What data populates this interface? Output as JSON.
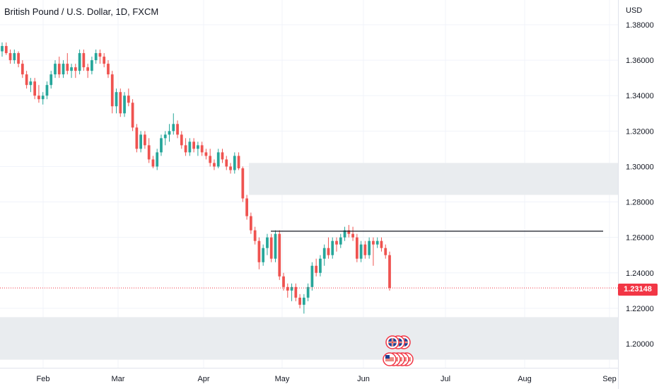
{
  "header": {
    "title": "British Pound / U.S. Dollar, 1D, FXCM",
    "currency": "USD"
  },
  "last_price": "1.23148",
  "chart_data": {
    "type": "candlestick",
    "symbol": "British Pound / U.S. Dollar",
    "interval": "1D",
    "source": "FXCM",
    "ylim": [
      1.19,
      1.39
    ],
    "y_ticks": [
      1.38,
      1.36,
      1.34,
      1.32,
      1.3,
      1.28,
      1.26,
      1.24,
      1.22,
      1.2
    ],
    "x_ticks": [
      "Feb",
      "Mar",
      "Apr",
      "May",
      "Jun",
      "Jul",
      "Aug",
      "Sep"
    ],
    "grid": true,
    "colors": {
      "up": "#26a69a",
      "down": "#ef5350",
      "zone": "#e9ecef",
      "line": "#131722",
      "last_price": "#f23645"
    },
    "resistance_line": 1.2635,
    "zones": [
      {
        "top": 1.302,
        "bottom": 1.284
      },
      {
        "top": 1.215,
        "bottom": 1.191
      }
    ],
    "candles": [
      [
        1.365,
        1.37,
        1.362,
        1.368
      ],
      [
        1.368,
        1.37,
        1.363,
        1.364
      ],
      [
        1.364,
        1.366,
        1.358,
        1.36
      ],
      [
        1.36,
        1.366,
        1.358,
        1.364
      ],
      [
        1.364,
        1.365,
        1.356,
        1.358
      ],
      [
        1.358,
        1.36,
        1.35,
        1.352
      ],
      [
        1.352,
        1.354,
        1.344,
        1.346
      ],
      [
        1.346,
        1.35,
        1.342,
        1.348
      ],
      [
        1.348,
        1.35,
        1.338,
        1.34
      ],
      [
        1.34,
        1.346,
        1.336,
        1.338
      ],
      [
        1.338,
        1.342,
        1.335,
        1.34
      ],
      [
        1.34,
        1.348,
        1.338,
        1.346
      ],
      [
        1.346,
        1.354,
        1.344,
        1.352
      ],
      [
        1.352,
        1.36,
        1.35,
        1.358
      ],
      [
        1.358,
        1.362,
        1.35,
        1.352
      ],
      [
        1.352,
        1.36,
        1.35,
        1.358
      ],
      [
        1.358,
        1.364,
        1.352,
        1.354
      ],
      [
        1.354,
        1.358,
        1.35,
        1.356
      ],
      [
        1.356,
        1.358,
        1.35,
        1.354
      ],
      [
        1.354,
        1.366,
        1.352,
        1.364
      ],
      [
        1.364,
        1.366,
        1.354,
        1.356
      ],
      [
        1.356,
        1.358,
        1.35,
        1.354
      ],
      [
        1.354,
        1.362,
        1.352,
        1.36
      ],
      [
        1.36,
        1.366,
        1.358,
        1.364
      ],
      [
        1.364,
        1.366,
        1.358,
        1.362
      ],
      [
        1.362,
        1.364,
        1.356,
        1.358
      ],
      [
        1.358,
        1.36,
        1.35,
        1.352
      ],
      [
        1.352,
        1.354,
        1.33,
        1.334
      ],
      [
        1.334,
        1.344,
        1.33,
        1.342
      ],
      [
        1.342,
        1.344,
        1.328,
        1.33
      ],
      [
        1.33,
        1.342,
        1.328,
        1.34
      ],
      [
        1.34,
        1.344,
        1.334,
        1.336
      ],
      [
        1.336,
        1.338,
        1.32,
        1.322
      ],
      [
        1.322,
        1.324,
        1.308,
        1.31
      ],
      [
        1.31,
        1.32,
        1.308,
        1.318
      ],
      [
        1.318,
        1.32,
        1.31,
        1.312
      ],
      [
        1.312,
        1.316,
        1.302,
        1.304
      ],
      [
        1.304,
        1.306,
        1.299,
        1.3
      ],
      [
        1.3,
        1.31,
        1.298,
        1.308
      ],
      [
        1.308,
        1.318,
        1.306,
        1.316
      ],
      [
        1.316,
        1.32,
        1.312,
        1.318
      ],
      [
        1.318,
        1.324,
        1.314,
        1.32
      ],
      [
        1.32,
        1.33,
        1.318,
        1.324
      ],
      [
        1.324,
        1.326,
        1.316,
        1.318
      ],
      [
        1.318,
        1.32,
        1.31,
        1.312
      ],
      [
        1.312,
        1.316,
        1.306,
        1.308
      ],
      [
        1.308,
        1.316,
        1.306,
        1.314
      ],
      [
        1.314,
        1.316,
        1.308,
        1.31
      ],
      [
        1.31,
        1.314,
        1.306,
        1.312
      ],
      [
        1.312,
        1.314,
        1.306,
        1.308
      ],
      [
        1.308,
        1.31,
        1.304,
        1.306
      ],
      [
        1.306,
        1.31,
        1.3,
        1.302
      ],
      [
        1.302,
        1.304,
        1.298,
        1.3
      ],
      [
        1.3,
        1.31,
        1.299,
        1.308
      ],
      [
        1.308,
        1.31,
        1.302,
        1.304
      ],
      [
        1.304,
        1.306,
        1.298,
        1.3
      ],
      [
        1.3,
        1.302,
        1.296,
        1.298
      ],
      [
        1.298,
        1.308,
        1.296,
        1.306
      ],
      [
        1.306,
        1.308,
        1.298,
        1.299
      ],
      [
        1.299,
        1.3,
        1.28,
        1.282
      ],
      [
        1.282,
        1.284,
        1.27,
        1.272
      ],
      [
        1.272,
        1.274,
        1.262,
        1.264
      ],
      [
        1.264,
        1.266,
        1.256,
        1.258
      ],
      [
        1.258,
        1.26,
        1.242,
        1.246
      ],
      [
        1.246,
        1.256,
        1.244,
        1.254
      ],
      [
        1.254,
        1.262,
        1.25,
        1.26
      ],
      [
        1.26,
        1.262,
        1.246,
        1.248
      ],
      [
        1.248,
        1.264,
        1.246,
        1.262
      ],
      [
        1.262,
        1.264,
        1.236,
        1.238
      ],
      [
        1.238,
        1.24,
        1.23,
        1.232
      ],
      [
        1.232,
        1.234,
        1.226,
        1.23
      ],
      [
        1.23,
        1.234,
        1.224,
        1.232
      ],
      [
        1.232,
        1.234,
        1.224,
        1.226
      ],
      [
        1.226,
        1.228,
        1.22,
        1.222
      ],
      [
        1.222,
        1.228,
        1.217,
        1.226
      ],
      [
        1.226,
        1.234,
        1.224,
        1.232
      ],
      [
        1.232,
        1.246,
        1.23,
        1.244
      ],
      [
        1.244,
        1.248,
        1.238,
        1.24
      ],
      [
        1.24,
        1.25,
        1.238,
        1.248
      ],
      [
        1.248,
        1.256,
        1.244,
        1.254
      ],
      [
        1.254,
        1.26,
        1.248,
        1.25
      ],
      [
        1.25,
        1.26,
        1.248,
        1.258
      ],
      [
        1.258,
        1.26,
        1.252,
        1.256
      ],
      [
        1.256,
        1.262,
        1.254,
        1.26
      ],
      [
        1.26,
        1.266,
        1.258,
        1.264
      ],
      [
        1.264,
        1.267,
        1.26,
        1.262
      ],
      [
        1.262,
        1.266,
        1.258,
        1.26
      ],
      [
        1.26,
        1.262,
        1.246,
        1.248
      ],
      [
        1.248,
        1.258,
        1.246,
        1.256
      ],
      [
        1.256,
        1.258,
        1.248,
        1.25
      ],
      [
        1.25,
        1.26,
        1.248,
        1.258
      ],
      [
        1.258,
        1.26,
        1.244,
        1.256
      ],
      [
        1.256,
        1.26,
        1.254,
        1.258
      ],
      [
        1.258,
        1.26,
        1.252,
        1.254
      ],
      [
        1.254,
        1.256,
        1.248,
        1.25
      ],
      [
        1.25,
        1.252,
        1.23,
        1.2315
      ]
    ]
  }
}
